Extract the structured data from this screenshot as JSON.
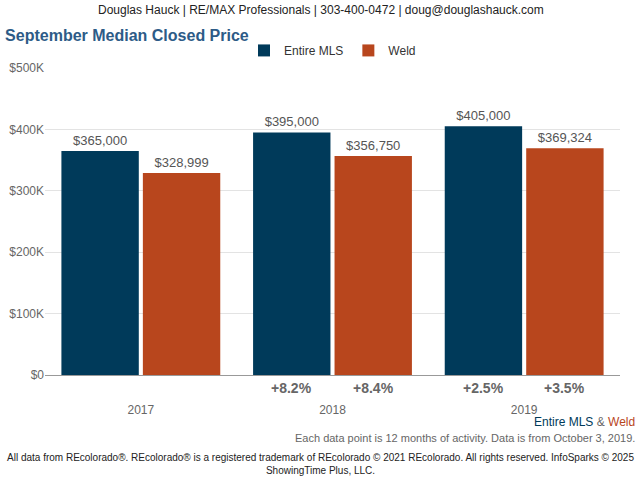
{
  "chart_data": {
    "type": "bar",
    "header": "Douglas Hauck | RE/MAX Professionals | 303-400-0472 | doug@douglashauck.com",
    "title": "September Median Closed Price",
    "categories": [
      "2017",
      "2018",
      "2019"
    ],
    "series": [
      {
        "name": "Entire MLS",
        "color": "#003a5a",
        "values": [
          365000,
          395000,
          405000
        ],
        "value_labels": [
          "$365,000",
          "$395,000",
          "$405,000"
        ],
        "change_labels": [
          null,
          "+8.2%",
          "+2.5%"
        ]
      },
      {
        "name": "Weld",
        "color": "#b8461d",
        "values": [
          328999,
          356750,
          369324
        ],
        "value_labels": [
          "$328,999",
          "$356,750",
          "$369,324"
        ],
        "change_labels": [
          null,
          "+8.4%",
          "+3.5%"
        ]
      }
    ],
    "ylim": [
      0,
      500000
    ],
    "yticks": [
      {
        "value": 0,
        "label": "$0"
      },
      {
        "value": 100000,
        "label": "$100K"
      },
      {
        "value": 200000,
        "label": "$200K"
      },
      {
        "value": 300000,
        "label": "$300K"
      },
      {
        "value": 400000,
        "label": "$400K"
      },
      {
        "value": 500000,
        "label": "$500K"
      }
    ],
    "grid": true,
    "legend": "top",
    "data_labels": true,
    "series_joiner": " & ",
    "notes": "Each data point is 12 months of activity. Data is from October 3, 2019.",
    "footer": [
      "All data from REcolorado®. REcolorado® is a registered trademark of REcolorado © 2021 REcolorado. All rights reserved. InfoSparks © 2025",
      "ShowingTime Plus, LLC."
    ]
  }
}
